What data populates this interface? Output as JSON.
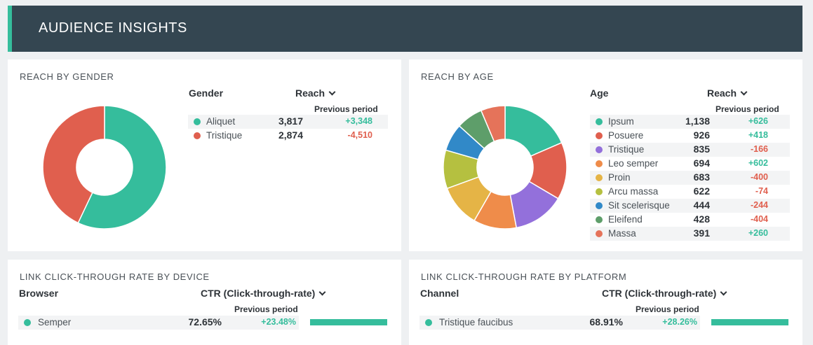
{
  "header": {
    "title": "AUDIENCE INSIGHTS"
  },
  "colors": {
    "header_bg": "#344651",
    "accent": "#35bd9c",
    "positive": "#35bd9c",
    "negative": "#e05f4e"
  },
  "gender": {
    "title": "REACH BY GENDER",
    "col_label": "Gender",
    "col_metric": "Reach",
    "prev_label": "Previous period",
    "rows": [
      {
        "label": "Aliquet",
        "value": "3,817",
        "change": "+3,348",
        "color": "#35bd9c",
        "num": 3817
      },
      {
        "label": "Tristique",
        "value": "2,874",
        "change": "-4,510",
        "color": "#e05f4e",
        "num": 2874
      }
    ]
  },
  "age": {
    "title": "REACH BY AGE",
    "col_label": "Age",
    "col_metric": "Reach",
    "prev_label": "Previous period",
    "rows": [
      {
        "label": "Ipsum",
        "value": "1,138",
        "change": "+626",
        "color": "#35bd9c",
        "num": 1138
      },
      {
        "label": "Posuere",
        "value": "926",
        "change": "+418",
        "color": "#e05f4e",
        "num": 926
      },
      {
        "label": "Tristique",
        "value": "835",
        "change": "-166",
        "color": "#9370db",
        "num": 835
      },
      {
        "label": "Leo semper",
        "value": "694",
        "change": "+602",
        "color": "#ef8c4a",
        "num": 694
      },
      {
        "label": "Proin",
        "value": "683",
        "change": "-400",
        "color": "#e5b446",
        "num": 683
      },
      {
        "label": "Arcu massa",
        "value": "622",
        "change": "-74",
        "color": "#b5c040",
        "num": 622
      },
      {
        "label": "Sit scelerisque",
        "value": "444",
        "change": "-244",
        "color": "#3189c8",
        "num": 444
      },
      {
        "label": "Eleifend",
        "value": "428",
        "change": "-404",
        "color": "#5e9e6a",
        "num": 428
      },
      {
        "label": "Massa",
        "value": "391",
        "change": "+260",
        "color": "#e5735a",
        "num": 391
      }
    ]
  },
  "device": {
    "title": "LINK CLICK-THROUGH RATE BY DEVICE",
    "col_label": "Browser",
    "col_metric": "CTR (Click-through-rate)",
    "prev_label": "Previous period",
    "rows": [
      {
        "label": "Semper",
        "value": "72.65%",
        "change": "+23.48%",
        "color": "#35bd9c",
        "bar_fraction": 1.0
      }
    ]
  },
  "platform": {
    "title": "LINK CLICK-THROUGH RATE BY PLATFORM",
    "col_label": "Channel",
    "col_metric": "CTR (Click-through-rate)",
    "prev_label": "Previous period",
    "rows": [
      {
        "label": "Tristique faucibus",
        "value": "68.91%",
        "change": "+28.26%",
        "color": "#35bd9c",
        "bar_fraction": 1.0
      }
    ]
  }
}
